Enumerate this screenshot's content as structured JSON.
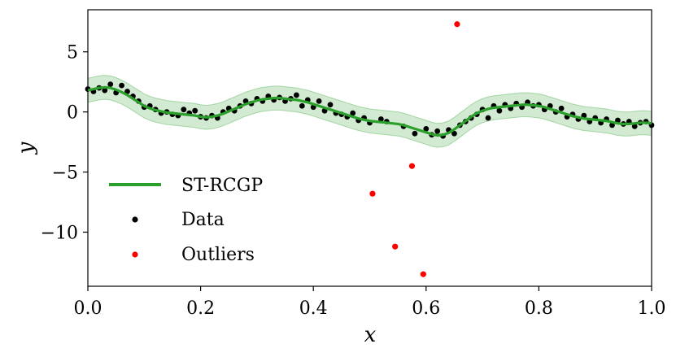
{
  "chart_data": {
    "type": "scatter",
    "title": "",
    "xlabel": "x",
    "ylabel": "y",
    "xlim": [
      0.0,
      1.0
    ],
    "ylim": [
      -14.5,
      8.5
    ],
    "xticks": [
      0.0,
      0.2,
      0.4,
      0.6,
      0.8,
      1.0
    ],
    "xtick_labels": [
      "0.0",
      "0.2",
      "0.4",
      "0.6",
      "0.8",
      "1.0"
    ],
    "yticks": [
      5,
      0,
      -5,
      -10
    ],
    "ytick_labels": [
      "5",
      "0",
      "−5",
      "−10"
    ],
    "colors": {
      "fit_line": "#2ca02c",
      "band": "#2ca02c",
      "data": "#000000",
      "outliers": "#ff0000"
    },
    "legend": {
      "placement": "lower-left",
      "entries": [
        {
          "label": "ST-RCGP",
          "kind": "line"
        },
        {
          "label": "Data",
          "kind": "point"
        },
        {
          "label": "Outliers",
          "kind": "outlier"
        }
      ]
    },
    "series": [
      {
        "name": "ST-RCGP",
        "kind": "line",
        "band_halfwidth": 1.0,
        "x": [
          0.0,
          0.01,
          0.02,
          0.03,
          0.04,
          0.05,
          0.06,
          0.07,
          0.08,
          0.09,
          0.1,
          0.11,
          0.12,
          0.13,
          0.14,
          0.15,
          0.16,
          0.17,
          0.18,
          0.19,
          0.2,
          0.21,
          0.22,
          0.23,
          0.24,
          0.25,
          0.26,
          0.27,
          0.28,
          0.29,
          0.3,
          0.31,
          0.32,
          0.33,
          0.34,
          0.35,
          0.36,
          0.37,
          0.38,
          0.39,
          0.4,
          0.41,
          0.42,
          0.43,
          0.44,
          0.45,
          0.46,
          0.47,
          0.48,
          0.49,
          0.5,
          0.51,
          0.52,
          0.53,
          0.54,
          0.55,
          0.56,
          0.57,
          0.58,
          0.59,
          0.6,
          0.61,
          0.62,
          0.63,
          0.64,
          0.65,
          0.66,
          0.67,
          0.68,
          0.69,
          0.7,
          0.71,
          0.72,
          0.73,
          0.74,
          0.75,
          0.76,
          0.77,
          0.78,
          0.79,
          0.8,
          0.81,
          0.82,
          0.83,
          0.84,
          0.85,
          0.86,
          0.87,
          0.88,
          0.89,
          0.9,
          0.91,
          0.92,
          0.93,
          0.94,
          0.95,
          0.96,
          0.97,
          0.98,
          0.99,
          1.0
        ],
        "y": [
          1.8,
          1.9,
          2.0,
          2.05,
          2.0,
          1.85,
          1.65,
          1.4,
          1.1,
          0.8,
          0.5,
          0.3,
          0.15,
          0.05,
          -0.05,
          -0.1,
          -0.15,
          -0.2,
          -0.25,
          -0.3,
          -0.4,
          -0.45,
          -0.4,
          -0.3,
          -0.15,
          0.05,
          0.25,
          0.45,
          0.65,
          0.8,
          0.95,
          1.05,
          1.1,
          1.15,
          1.15,
          1.1,
          1.05,
          1.0,
          0.9,
          0.8,
          0.65,
          0.5,
          0.35,
          0.2,
          0.05,
          -0.1,
          -0.25,
          -0.4,
          -0.55,
          -0.65,
          -0.75,
          -0.8,
          -0.85,
          -0.9,
          -0.95,
          -1.0,
          -1.1,
          -1.25,
          -1.4,
          -1.55,
          -1.7,
          -1.85,
          -1.95,
          -1.9,
          -1.75,
          -1.45,
          -1.1,
          -0.75,
          -0.4,
          -0.1,
          0.1,
          0.25,
          0.35,
          0.4,
          0.45,
          0.5,
          0.55,
          0.6,
          0.6,
          0.55,
          0.5,
          0.4,
          0.25,
          0.1,
          -0.05,
          -0.2,
          -0.35,
          -0.45,
          -0.55,
          -0.6,
          -0.65,
          -0.7,
          -0.75,
          -0.85,
          -0.95,
          -1.0,
          -1.0,
          -0.95,
          -0.9,
          -0.9,
          -0.95
        ]
      },
      {
        "name": "Data",
        "kind": "scatter",
        "x": [
          0.0,
          0.01,
          0.02,
          0.03,
          0.04,
          0.05,
          0.06,
          0.07,
          0.08,
          0.09,
          0.1,
          0.11,
          0.12,
          0.13,
          0.14,
          0.15,
          0.16,
          0.17,
          0.18,
          0.19,
          0.2,
          0.21,
          0.22,
          0.23,
          0.24,
          0.25,
          0.26,
          0.27,
          0.28,
          0.29,
          0.3,
          0.31,
          0.32,
          0.33,
          0.34,
          0.35,
          0.36,
          0.37,
          0.38,
          0.39,
          0.4,
          0.41,
          0.42,
          0.43,
          0.44,
          0.45,
          0.46,
          0.47,
          0.48,
          0.49,
          0.5,
          0.52,
          0.53,
          0.56,
          0.58,
          0.6,
          0.61,
          0.62,
          0.63,
          0.64,
          0.65,
          0.66,
          0.67,
          0.68,
          0.69,
          0.7,
          0.71,
          0.72,
          0.73,
          0.74,
          0.75,
          0.76,
          0.77,
          0.78,
          0.79,
          0.8,
          0.81,
          0.82,
          0.83,
          0.84,
          0.85,
          0.86,
          0.87,
          0.88,
          0.89,
          0.9,
          0.91,
          0.92,
          0.93,
          0.94,
          0.95,
          0.96,
          0.97,
          0.98,
          0.99,
          1.0
        ],
        "y": [
          1.9,
          1.7,
          2.0,
          1.8,
          2.3,
          1.6,
          2.2,
          1.7,
          1.3,
          0.9,
          0.4,
          0.5,
          0.2,
          -0.1,
          0.0,
          -0.2,
          -0.3,
          0.2,
          -0.1,
          0.1,
          -0.4,
          -0.5,
          -0.3,
          -0.5,
          0.0,
          0.3,
          0.1,
          0.5,
          0.9,
          0.7,
          1.1,
          0.9,
          1.3,
          1.0,
          1.2,
          0.9,
          1.1,
          1.4,
          0.5,
          1.0,
          0.4,
          0.9,
          0.1,
          0.6,
          -0.1,
          -0.2,
          -0.4,
          -0.1,
          -0.7,
          -0.5,
          -0.9,
          -0.6,
          -0.8,
          -1.2,
          -1.8,
          -1.4,
          -1.9,
          -1.6,
          -2.0,
          -1.5,
          -1.8,
          -1.1,
          -0.8,
          -0.5,
          -0.2,
          0.2,
          -0.5,
          0.5,
          0.1,
          0.6,
          0.3,
          0.7,
          0.4,
          0.8,
          0.5,
          0.6,
          0.2,
          0.5,
          0.0,
          0.3,
          -0.4,
          -0.2,
          -0.6,
          -0.3,
          -0.8,
          -0.5,
          -0.9,
          -0.6,
          -1.1,
          -0.7,
          -1.0,
          -0.8,
          -1.2,
          -0.9,
          -0.8,
          -1.1
        ]
      },
      {
        "name": "Outliers",
        "kind": "scatter",
        "x": [
          0.505,
          0.545,
          0.575,
          0.595,
          0.655
        ],
        "y": [
          -6.8,
          -11.2,
          -4.5,
          -13.5,
          7.3
        ]
      }
    ]
  }
}
